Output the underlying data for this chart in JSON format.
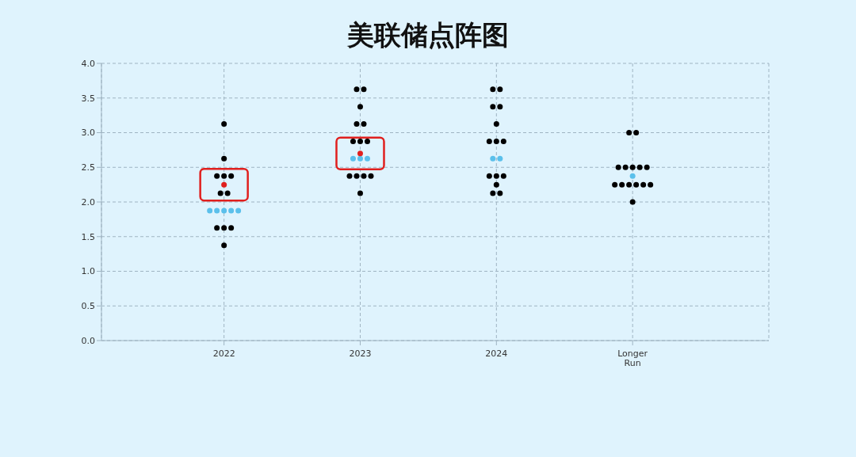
{
  "chart_data": {
    "type": "scatter",
    "title": "美联储点阵图",
    "categories": [
      "2022",
      "2023",
      "2024",
      "Longer Run"
    ],
    "series": [
      {
        "color": "#000000",
        "values": [
          3.125,
          3.625,
          3.625,
          3.0
        ]
      },
      {
        "color": "#000000",
        "values": [
          2.625,
          3.625,
          3.625,
          3.0
        ]
      },
      {
        "color": "#000000",
        "values": [
          2.375,
          3.375,
          3.375,
          2.5
        ]
      },
      {
        "color": "#000000",
        "values": [
          2.375,
          3.125,
          3.375,
          2.5
        ]
      },
      {
        "color": "#000000",
        "values": [
          2.375,
          3.125,
          3.125,
          2.5
        ]
      },
      {
        "color": "#000000",
        "values": [
          2.125,
          2.875,
          2.875,
          2.5
        ]
      },
      {
        "color": "#000000",
        "values": [
          2.125,
          2.875,
          2.875,
          2.5
        ]
      },
      {
        "color": "#000000",
        "values": [
          1.625,
          2.875,
          2.875,
          2.25
        ]
      },
      {
        "color": "#000000",
        "values": [
          1.625,
          2.375,
          2.375,
          2.25
        ]
      },
      {
        "color": "#000000",
        "values": [
          1.625,
          2.375,
          2.375,
          2.25
        ]
      },
      {
        "color": "#000000",
        "values": [
          1.375,
          2.375,
          2.375,
          2.25
        ]
      },
      {
        "color": "#000000",
        "values": [
          null,
          2.375,
          2.25,
          2.25
        ]
      },
      {
        "color": "#000000",
        "values": [
          null,
          2.125,
          2.125,
          2.25
        ]
      },
      {
        "color": "#000000",
        "values": [
          null,
          null,
          2.125,
          2.0
        ]
      },
      {
        "color": "#5bc0eb",
        "values": [
          1.875,
          2.625,
          2.625,
          2.375
        ]
      },
      {
        "color": "#5bc0eb",
        "values": [
          1.875,
          2.625,
          2.625,
          null
        ]
      },
      {
        "color": "#5bc0eb",
        "values": [
          1.875,
          2.625,
          null,
          null
        ]
      },
      {
        "color": "#5bc0eb",
        "values": [
          1.875,
          null,
          null,
          null
        ]
      },
      {
        "color": "#5bc0eb",
        "values": [
          1.875,
          null,
          null,
          null
        ]
      },
      {
        "color": "#e0201e",
        "values": [
          2.25,
          2.7,
          null,
          null
        ]
      }
    ],
    "ylim": [
      0,
      4
    ],
    "yticks": [
      {
        "value": 0,
        "label": "0.0"
      },
      {
        "value": 0.5,
        "label": "0.5"
      },
      {
        "value": 1,
        "label": "1.0"
      },
      {
        "value": 1.5,
        "label": "1.5"
      },
      {
        "value": 2,
        "label": "2.0"
      },
      {
        "value": 2.5,
        "label": "2.5"
      },
      {
        "value": 3,
        "label": "3.0"
      },
      {
        "value": 3.5,
        "label": "3.5"
      },
      {
        "value": 4,
        "label": "4.0"
      }
    ],
    "grid": true,
    "marker": "circle",
    "legend": false
  }
}
